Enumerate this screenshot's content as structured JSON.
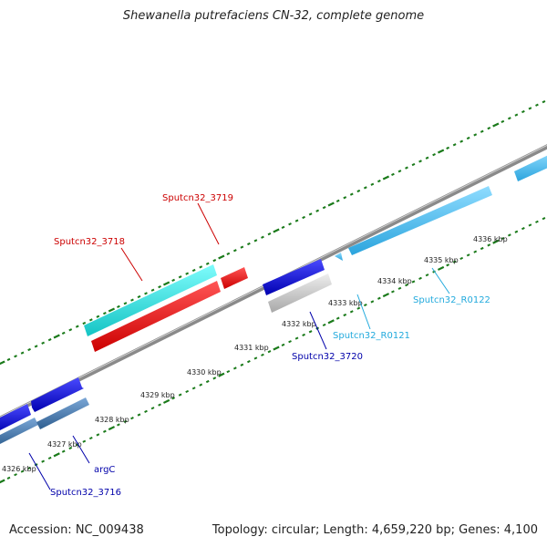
{
  "title": "Shewanella putrefaciens CN-32, complete genome",
  "footer": {
    "accession": "Accession: NC_009438",
    "topology": "Topology: circular; Length: 4,659,220 bp; Genes: 4,100"
  },
  "colors": {
    "backbone": "#8a8a8a",
    "ticks": "#1a7a1a",
    "cds_forward": "#1010dd",
    "cds_reverse": "#4a7fb5",
    "rRNA_cyan": "#22e0e0",
    "highlight_red": "#ee1111",
    "tRNA": "#44bbee",
    "pseudo_gray": "#c8c8c8"
  },
  "kbp_labels": [
    "4326 kbp",
    "4327 kbp",
    "4328 kbp",
    "4329 kbp",
    "4330 kbp",
    "4331 kbp",
    "4332 kbp",
    "4333 kbp",
    "4334 kbp",
    "4335 kbp",
    "4336 kbp"
  ],
  "gene_labels": [
    {
      "text": "Sputcn32_3719",
      "color": "#cc0000"
    },
    {
      "text": "Sputcn32_3718",
      "color": "#cc0000"
    },
    {
      "text": "Sputcn32_3720",
      "color": "#0000aa"
    },
    {
      "text": "Sputcn32_R0121",
      "color": "#22aadd"
    },
    {
      "text": "Sputcn32_R0122",
      "color": "#22aadd"
    },
    {
      "text": "argC",
      "color": "#0000aa"
    },
    {
      "text": "Sputcn32_3716",
      "color": "#0000aa"
    }
  ]
}
